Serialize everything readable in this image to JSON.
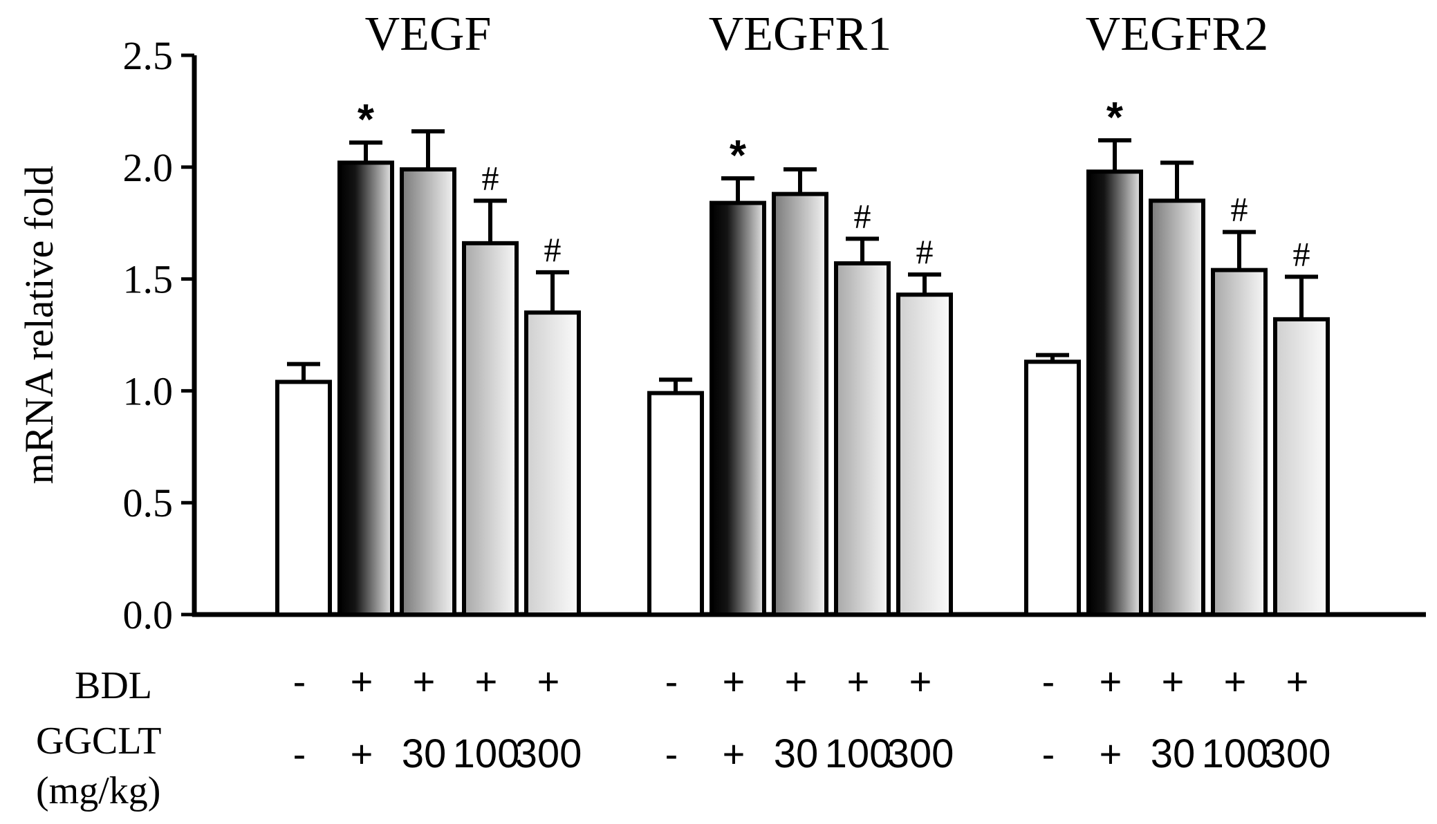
{
  "chart_data": {
    "type": "bar",
    "ylabel": "mRNA relative fold",
    "ylim": [
      0,
      2.5
    ],
    "yticks": [
      "0.0",
      "0.5",
      "1.0",
      "1.5",
      "2.0",
      "2.5"
    ],
    "row_labels": {
      "bdl": "BDL",
      "ggclt": "GGCLT",
      "unit": "(mg/kg)"
    },
    "groups": [
      {
        "title": "VEGF",
        "bars": [
          {
            "bdl": "-",
            "ggclt": "-",
            "value": 1.04,
            "error": 0.08,
            "mark": ""
          },
          {
            "bdl": "+",
            "ggclt": "+",
            "value": 2.02,
            "error": 0.09,
            "mark": "*"
          },
          {
            "bdl": "+",
            "ggclt": "30",
            "value": 1.99,
            "error": 0.17,
            "mark": ""
          },
          {
            "bdl": "+",
            "ggclt": "100",
            "value": 1.66,
            "error": 0.19,
            "mark": "#"
          },
          {
            "bdl": "+",
            "ggclt": "300",
            "value": 1.35,
            "error": 0.18,
            "mark": "#"
          }
        ]
      },
      {
        "title": "VEGFR1",
        "bars": [
          {
            "bdl": "-",
            "ggclt": "-",
            "value": 0.99,
            "error": 0.06,
            "mark": ""
          },
          {
            "bdl": "+",
            "ggclt": "+",
            "value": 1.84,
            "error": 0.11,
            "mark": "*"
          },
          {
            "bdl": "+",
            "ggclt": "30",
            "value": 1.88,
            "error": 0.11,
            "mark": ""
          },
          {
            "bdl": "+",
            "ggclt": "100",
            "value": 1.57,
            "error": 0.11,
            "mark": "#"
          },
          {
            "bdl": "+",
            "ggclt": "300",
            "value": 1.43,
            "error": 0.09,
            "mark": "#"
          }
        ]
      },
      {
        "title": "VEGFR2",
        "bars": [
          {
            "bdl": "-",
            "ggclt": "-",
            "value": 1.13,
            "error": 0.03,
            "mark": ""
          },
          {
            "bdl": "+",
            "ggclt": "+",
            "value": 1.98,
            "error": 0.14,
            "mark": "*"
          },
          {
            "bdl": "+",
            "ggclt": "30",
            "value": 1.85,
            "error": 0.17,
            "mark": ""
          },
          {
            "bdl": "+",
            "ggclt": "100",
            "value": 1.54,
            "error": 0.17,
            "mark": "#"
          },
          {
            "bdl": "+",
            "ggclt": "300",
            "value": 1.32,
            "error": 0.19,
            "mark": "#"
          }
        ]
      }
    ],
    "fill_styles": [
      "white",
      "black-gradient",
      "gray-gradient",
      "lightgray-gradient",
      "lightest-gradient"
    ]
  }
}
